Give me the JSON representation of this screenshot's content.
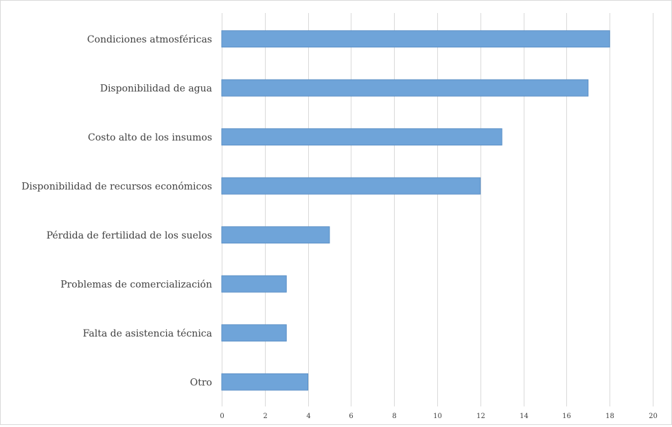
{
  "chart_data": {
    "type": "bar",
    "orientation": "horizontal",
    "categories": [
      "Condiciones atmosféricas",
      "Disponibilidad de agua",
      "Costo alto de los insumos",
      "Disponibilidad de recursos económicos",
      "Pérdida de fertilidad de los suelos",
      "Problemas de comercialización",
      "Falta de asistencia técnica",
      "Otro"
    ],
    "values": [
      18,
      17,
      13,
      12,
      5,
      3,
      3,
      4
    ],
    "xlim": [
      0,
      20
    ],
    "x_ticks": [
      0,
      2,
      4,
      6,
      8,
      10,
      12,
      14,
      16,
      18,
      20
    ],
    "grid": "vertical",
    "bar_color": "#6fa4d9",
    "bar_edge_color": "#5a8fc6",
    "grid_color": "#d9d9d9",
    "label_color": "#404040",
    "title": "",
    "xlabel": "",
    "ylabel": ""
  }
}
